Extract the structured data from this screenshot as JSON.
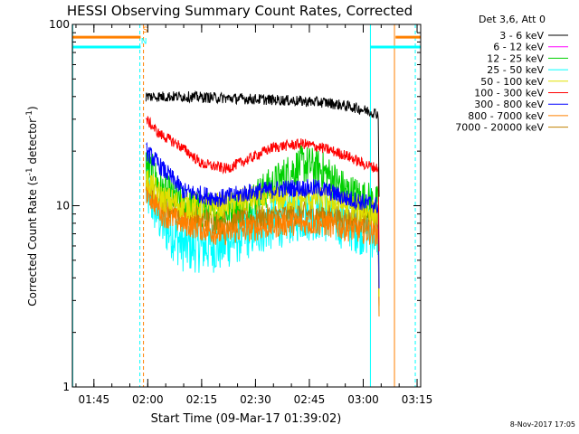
{
  "chart_data": {
    "type": "line",
    "title": "HESSI Observing Summary Count Rates, Corrected",
    "xlabel": "Start Time (09-Mar-17 01:39:02)",
    "ylabel_parts": {
      "pre": "Corrected Count Rate (s",
      "sup1": "-1",
      "mid": " detector",
      "sup2": "-1",
      "post": ")"
    },
    "footer": "8-Nov-2017 17:05",
    "legend_title": "Det 3,6, Att 0",
    "y_scale": "log",
    "ylim": [
      1,
      100
    ],
    "xlim_minutes": [
      99.0,
      196.0
    ],
    "x_ticks": [
      {
        "minute": 105,
        "label": "01:45"
      },
      {
        "minute": 120,
        "label": "02:00"
      },
      {
        "minute": 135,
        "label": "02:15"
      },
      {
        "minute": 150,
        "label": "02:30"
      },
      {
        "minute": 165,
        "label": "02:45"
      },
      {
        "minute": 180,
        "label": "03:00"
      },
      {
        "minute": 195,
        "label": "03:15"
      }
    ],
    "y_ticks": [
      {
        "value": 1,
        "label": "1"
      },
      {
        "value": 10,
        "label": "10"
      },
      {
        "value": 100,
        "label": "100"
      }
    ],
    "data_window_minutes": [
      119.5,
      184.3
    ],
    "series": [
      {
        "name": "3 - 6 keV",
        "color": "#000000",
        "profile": [
          [
            119.5,
            40
          ],
          [
            130,
            40
          ],
          [
            145,
            39
          ],
          [
            160,
            38
          ],
          [
            170,
            37
          ],
          [
            177,
            35
          ],
          [
            182,
            33
          ],
          [
            184.3,
            32
          ]
        ],
        "noise": 0.06
      },
      {
        "name": "6 - 12 keV",
        "color": "#ff00ff",
        "profile": [],
        "noise": 0
      },
      {
        "name": "12 - 25 keV",
        "color": "#00d000",
        "profile": [
          [
            119.5,
            17
          ],
          [
            124,
            12
          ],
          [
            130,
            10
          ],
          [
            140,
            9
          ],
          [
            147,
            10
          ],
          [
            155,
            13
          ],
          [
            163,
            17
          ],
          [
            168,
            16
          ],
          [
            175,
            12
          ],
          [
            184.3,
            10
          ]
        ],
        "noise": 0.22
      },
      {
        "name": "25 - 50 keV",
        "color": "#00ffff",
        "profile": [
          [
            119.5,
            12
          ],
          [
            124,
            8
          ],
          [
            130,
            6
          ],
          [
            140,
            6
          ],
          [
            147,
            7
          ],
          [
            155,
            8
          ],
          [
            163,
            9
          ],
          [
            168,
            9
          ],
          [
            175,
            8
          ],
          [
            184.3,
            7
          ]
        ],
        "noise": 0.3
      },
      {
        "name": "50 - 100 keV",
        "color": "#e0e000",
        "profile": [
          [
            119.5,
            14
          ],
          [
            124,
            11
          ],
          [
            130,
            10
          ],
          [
            140,
            10
          ],
          [
            150,
            11
          ],
          [
            160,
            11
          ],
          [
            168,
            11
          ],
          [
            175,
            10
          ],
          [
            184.3,
            9
          ]
        ],
        "noise": 0.15
      },
      {
        "name": "100 - 300 keV",
        "color": "#ff0000",
        "profile": [
          [
            119.5,
            30
          ],
          [
            123,
            25
          ],
          [
            128,
            22
          ],
          [
            135,
            17
          ],
          [
            142,
            16
          ],
          [
            148,
            18
          ],
          [
            155,
            21
          ],
          [
            163,
            22
          ],
          [
            168,
            21
          ],
          [
            175,
            19
          ],
          [
            180,
            17
          ],
          [
            184.3,
            16
          ]
        ],
        "noise": 0.06
      },
      {
        "name": "300 - 800 keV",
        "color": "#0000ff",
        "profile": [
          [
            119.5,
            20
          ],
          [
            124,
            16
          ],
          [
            130,
            12
          ],
          [
            140,
            11
          ],
          [
            150,
            12
          ],
          [
            160,
            12.5
          ],
          [
            168,
            12.5
          ],
          [
            175,
            11
          ],
          [
            184.3,
            10
          ]
        ],
        "noise": 0.1
      },
      {
        "name": "800 - 7000 keV",
        "color": "#ff8000",
        "profile": [
          [
            119.5,
            12
          ],
          [
            124,
            9
          ],
          [
            130,
            8
          ],
          [
            140,
            7
          ],
          [
            150,
            7.5
          ],
          [
            160,
            8
          ],
          [
            168,
            8
          ],
          [
            175,
            7.5
          ],
          [
            184.3,
            7
          ]
        ],
        "noise": 0.14
      },
      {
        "name": "7000 - 20000 keV",
        "color": "#c08000",
        "profile": [
          [
            119.5,
            13
          ],
          [
            124,
            10
          ],
          [
            130,
            9
          ],
          [
            140,
            8
          ],
          [
            150,
            8.5
          ],
          [
            160,
            9
          ],
          [
            168,
            9
          ],
          [
            175,
            8.5
          ],
          [
            184.3,
            8
          ]
        ],
        "noise": 0.14
      }
    ],
    "flag_bars": [
      {
        "color": "#00ffff",
        "x0": 99.0,
        "x1": 118.0,
        "y": 75
      },
      {
        "color": "#ff8000",
        "x0": 99.0,
        "x1": 118.0,
        "y": 85
      },
      {
        "color": "#00ffff",
        "x0": 182.0,
        "x1": 196.0,
        "y": 75
      },
      {
        "color": "#ff8000",
        "x0": 189.0,
        "x1": 196.0,
        "y": 85
      }
    ],
    "flag_labels": [
      {
        "text": "S",
        "color": "#ff8000",
        "x": 118.6,
        "y": 90
      },
      {
        "text": "N",
        "color": "#00ffff",
        "x": 118.1,
        "y": 78
      }
    ],
    "vlines": [
      {
        "minute": 99.1,
        "color": "#00ffff",
        "dashed": false
      },
      {
        "minute": 117.8,
        "color": "#00ffff",
        "dashed": true
      },
      {
        "minute": 118.8,
        "color": "#ff8000",
        "dashed": true
      },
      {
        "minute": 182.0,
        "color": "#00ffff",
        "dashed": false
      },
      {
        "minute": 188.7,
        "color": "#ff8000",
        "dashed": false
      },
      {
        "minute": 194.5,
        "color": "#00ffff",
        "dashed": true
      }
    ]
  }
}
